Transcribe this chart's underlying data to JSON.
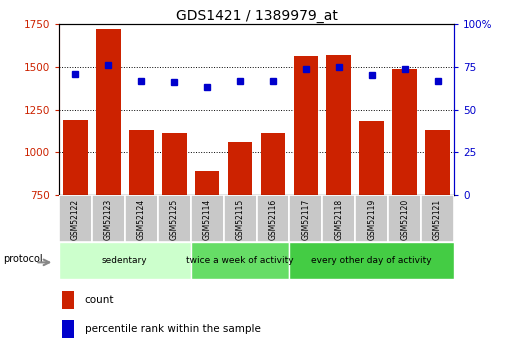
{
  "title": "GDS1421 / 1389979_at",
  "categories": [
    "GSM52122",
    "GSM52123",
    "GSM52124",
    "GSM52125",
    "GSM52114",
    "GSM52115",
    "GSM52116",
    "GSM52117",
    "GSM52118",
    "GSM52119",
    "GSM52120",
    "GSM52121"
  ],
  "counts": [
    1190,
    1720,
    1130,
    1110,
    890,
    1060,
    1110,
    1565,
    1570,
    1185,
    1490,
    1130
  ],
  "percentiles": [
    71,
    76,
    67,
    66,
    63,
    67,
    67,
    74,
    75,
    70,
    74,
    67
  ],
  "ylim_left": [
    750,
    1750
  ],
  "ylim_right": [
    0,
    100
  ],
  "yticks_left": [
    750,
    1000,
    1250,
    1500,
    1750
  ],
  "yticks_right": [
    0,
    25,
    50,
    75,
    100
  ],
  "bar_color": "#cc2200",
  "dot_color": "#0000cc",
  "bg_color": "#ffffff",
  "tick_label_bg": "#c8c8c8",
  "group_data": [
    {
      "label": "sedentary",
      "start": 0,
      "end": 3,
      "color": "#ccffcc"
    },
    {
      "label": "twice a week of activity",
      "start": 4,
      "end": 6,
      "color": "#66dd66"
    },
    {
      "label": "every other day of activity",
      "start": 7,
      "end": 11,
      "color": "#44cc44"
    }
  ],
  "legend_count_label": "count",
  "legend_pct_label": "percentile rank within the sample",
  "protocol_label": "protocol"
}
